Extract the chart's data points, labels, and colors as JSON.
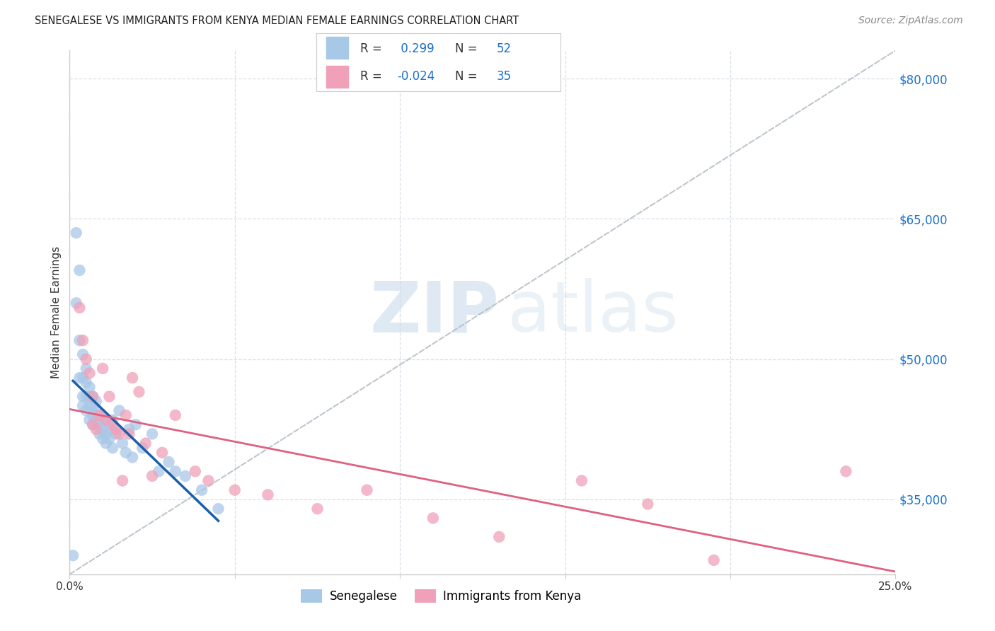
{
  "title": "SENEGALESE VS IMMIGRANTS FROM KENYA MEDIAN FEMALE EARNINGS CORRELATION CHART",
  "source": "Source: ZipAtlas.com",
  "ylabel": "Median Female Earnings",
  "xlim": [
    0.0,
    0.25
  ],
  "ylim": [
    27000,
    83000
  ],
  "yticks": [
    35000,
    50000,
    65000,
    80000
  ],
  "xticks": [
    0.0,
    0.05,
    0.1,
    0.15,
    0.2,
    0.25
  ],
  "xtick_labels": [
    "0.0%",
    "",
    "",
    "",
    "",
    "25.0%"
  ],
  "blue_color": "#a8c8e8",
  "pink_color": "#f0a0b8",
  "blue_line_color": "#1a5fa8",
  "pink_line_color": "#e06080",
  "ref_line_color": "#b0b8c0",
  "legend_R1": "0.299",
  "legend_N1": "52",
  "legend_R2": "-0.024",
  "legend_N2": "35",
  "blue_dots_x": [
    0.001,
    0.002,
    0.002,
    0.003,
    0.003,
    0.003,
    0.004,
    0.004,
    0.004,
    0.004,
    0.005,
    0.005,
    0.005,
    0.005,
    0.006,
    0.006,
    0.006,
    0.006,
    0.007,
    0.007,
    0.007,
    0.007,
    0.008,
    0.008,
    0.008,
    0.009,
    0.009,
    0.009,
    0.01,
    0.01,
    0.01,
    0.011,
    0.011,
    0.012,
    0.012,
    0.013,
    0.013,
    0.014,
    0.015,
    0.016,
    0.017,
    0.018,
    0.019,
    0.02,
    0.022,
    0.025,
    0.027,
    0.03,
    0.032,
    0.035,
    0.04,
    0.045
  ],
  "blue_dots_y": [
    29000,
    63500,
    56000,
    59500,
    52000,
    48000,
    50500,
    48000,
    46000,
    45000,
    49000,
    47500,
    46000,
    44500,
    47000,
    46000,
    45000,
    43500,
    46000,
    45000,
    44000,
    43000,
    45500,
    44500,
    43500,
    44000,
    43000,
    42000,
    43500,
    42500,
    41500,
    42000,
    41000,
    42500,
    41500,
    43500,
    40500,
    42000,
    44500,
    41000,
    40000,
    42500,
    39500,
    43000,
    40500,
    42000,
    38000,
    39000,
    38000,
    37500,
    36000,
    34000
  ],
  "pink_dots_x": [
    0.003,
    0.004,
    0.005,
    0.006,
    0.007,
    0.007,
    0.008,
    0.009,
    0.01,
    0.011,
    0.012,
    0.013,
    0.014,
    0.015,
    0.016,
    0.017,
    0.018,
    0.019,
    0.021,
    0.023,
    0.025,
    0.028,
    0.032,
    0.038,
    0.042,
    0.05,
    0.06,
    0.075,
    0.09,
    0.11,
    0.13,
    0.155,
    0.175,
    0.195,
    0.235
  ],
  "pink_dots_y": [
    55500,
    52000,
    50000,
    48500,
    46000,
    43000,
    42500,
    44000,
    49000,
    43500,
    46000,
    43000,
    42500,
    42000,
    37000,
    44000,
    42000,
    48000,
    46500,
    41000,
    37500,
    40000,
    44000,
    38000,
    37000,
    36000,
    35500,
    34000,
    36000,
    33000,
    31000,
    37000,
    34500,
    28500,
    38000
  ],
  "watermark_zip": "ZIP",
  "watermark_atlas": "atlas",
  "background_color": "#ffffff",
  "grid_color": "#d0d8e0",
  "legend_label_1": "Senegalese",
  "legend_label_2": "Immigrants from Kenya"
}
